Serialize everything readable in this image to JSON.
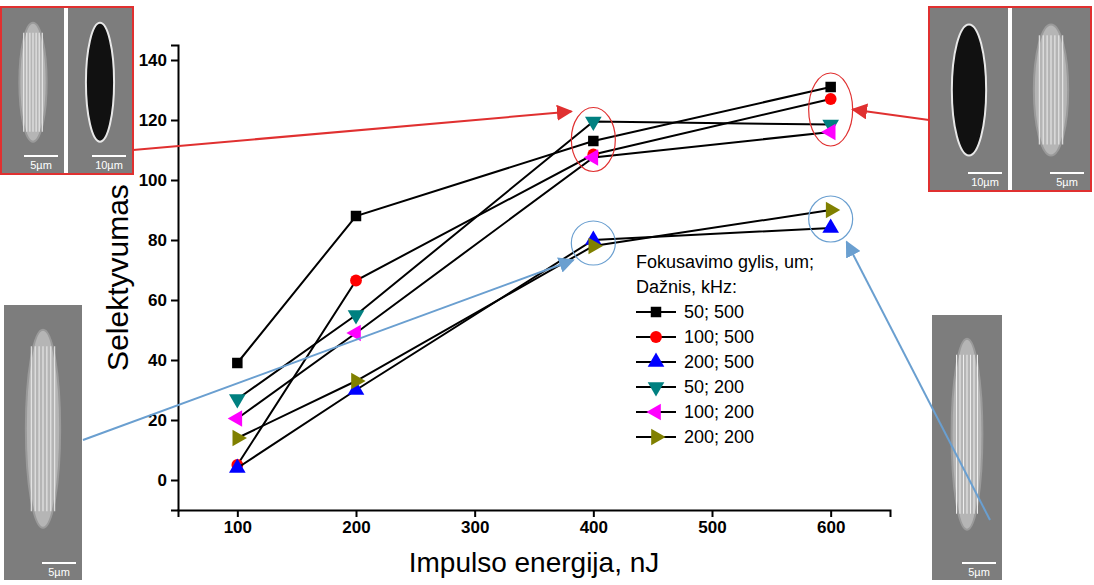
{
  "chart_data": {
    "type": "line",
    "x_label": "Impulso energija, nJ",
    "y_label": "Selektyvumas",
    "legend_title": [
      "Fokusavimo gylis, um;",
      "Dažnis, kHz:"
    ],
    "legend": "lower right",
    "grid": false,
    "x": [
      100,
      200,
      400,
      600
    ],
    "xlim": [
      50,
      650
    ],
    "xticks": [
      100,
      200,
      300,
      400,
      500,
      600
    ],
    "ylim": [
      -10,
      145
    ],
    "yticks": [
      0,
      20,
      40,
      60,
      80,
      100,
      120,
      140
    ],
    "series": [
      {
        "name": "50; 500",
        "color": "#000000",
        "marker": "square",
        "values": [
          39,
          88,
          113,
          131
        ]
      },
      {
        "name": "100; 500",
        "color": "#ff0000",
        "marker": "circle",
        "values": [
          5,
          66.5,
          108.5,
          127
        ]
      },
      {
        "name": "200; 500",
        "color": "#0000ff",
        "marker": "triangle-up",
        "values": [
          4,
          30,
          80,
          84
        ]
      },
      {
        "name": "50; 200",
        "color": "#008080",
        "marker": "triangle-down",
        "values": [
          27,
          55,
          119.5,
          118.5
        ]
      },
      {
        "name": "100; 200",
        "color": "#ff00ff",
        "marker": "triangle-left",
        "values": [
          20.5,
          49,
          107.5,
          116
        ]
      },
      {
        "name": "200; 200",
        "color": "#808000",
        "marker": "triangle-right",
        "values": [
          14,
          33,
          78,
          90
        ]
      }
    ],
    "annotations": [
      "5µm",
      "10µm",
      "10µm",
      "5µm",
      "5µm",
      "5µm"
    ]
  }
}
